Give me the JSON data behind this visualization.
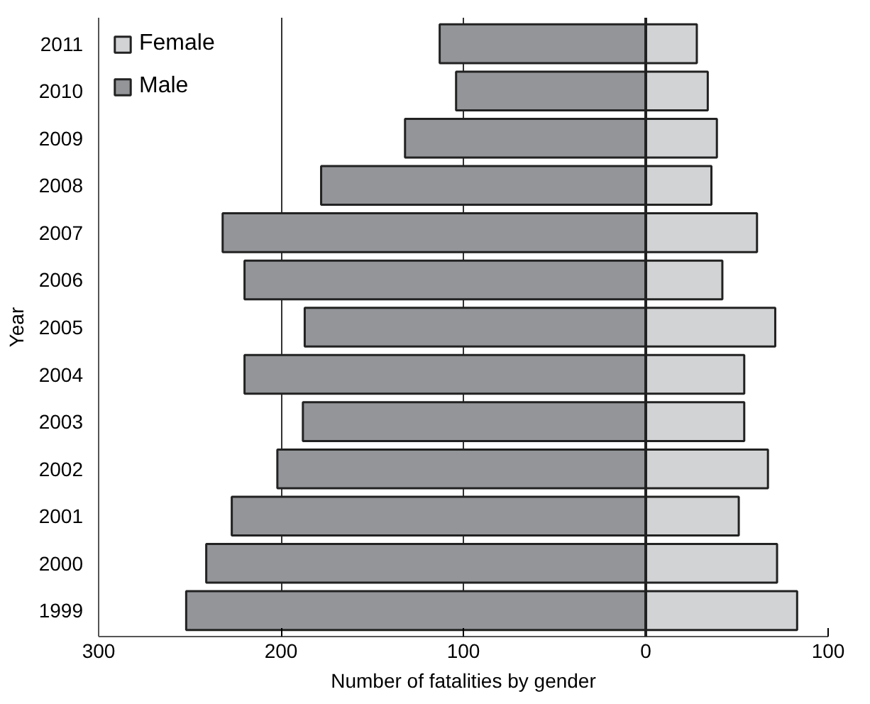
{
  "chart_data": {
    "type": "bar",
    "orientation": "horizontal",
    "xlabel": "Number of fatalities by gender",
    "ylabel": "Year",
    "categories": [
      "2011",
      "2010",
      "2009",
      "2008",
      "2007",
      "2006",
      "2005",
      "2004",
      "2003",
      "2002",
      "2001",
      "2000",
      "1999"
    ],
    "series": [
      {
        "name": "Female",
        "color": "#d1d3d4",
        "values": [
          28,
          34,
          39,
          36,
          61,
          42,
          71,
          54,
          54,
          67,
          51,
          72,
          83
        ]
      },
      {
        "name": "Male",
        "color": "#939598",
        "values": [
          -113,
          -104,
          -132,
          -178,
          -232,
          -220,
          -187,
          -220,
          -188,
          -202,
          -227,
          -241,
          -252
        ]
      }
    ],
    "xlim": [
      -300,
      100
    ],
    "xticks": [
      {
        "value": -300,
        "label": "300"
      },
      {
        "value": -200,
        "label": "200"
      },
      {
        "value": -100,
        "label": "100"
      },
      0,
      100
    ],
    "grid": "x",
    "legend": "top left",
    "stacked": true
  }
}
